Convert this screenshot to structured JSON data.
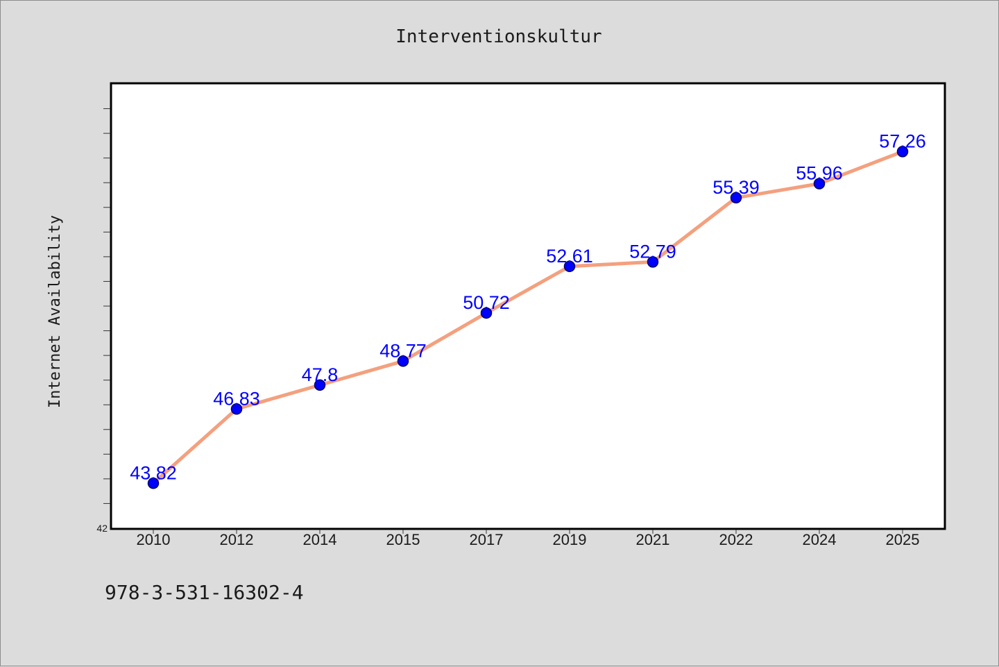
{
  "chart_data": {
    "type": "line",
    "title": "Interventionskultur",
    "xlabel": "",
    "ylabel": "Internet Availability",
    "categories": [
      "2010",
      "2012",
      "2014",
      "2015",
      "2017",
      "2019",
      "2021",
      "2022",
      "2024",
      "2025"
    ],
    "series": [
      {
        "values": [
          43.82,
          46.83,
          47.8,
          48.77,
          50.72,
          52.61,
          52.79,
          55.39,
          55.96,
          57.26
        ]
      }
    ],
    "data_labels": [
      "43.82",
      "46.83",
      "47.8",
      "48.77",
      "50.72",
      "52.61",
      "52.79",
      "55.39",
      "55.96",
      "57.26"
    ],
    "ylim": [
      42,
      60
    ],
    "y_tick_labels": [
      "42"
    ],
    "grid": false,
    "legend": "none",
    "colors": {
      "line": "#f4a07e",
      "marker": "#0000ff",
      "marker_edge": "#000066",
      "data_label": "#0000ff",
      "plot_background": "#ffffff",
      "page_background": "#dcdcdc"
    }
  },
  "footer": {
    "isbn": "978-3-531-16302-4"
  }
}
